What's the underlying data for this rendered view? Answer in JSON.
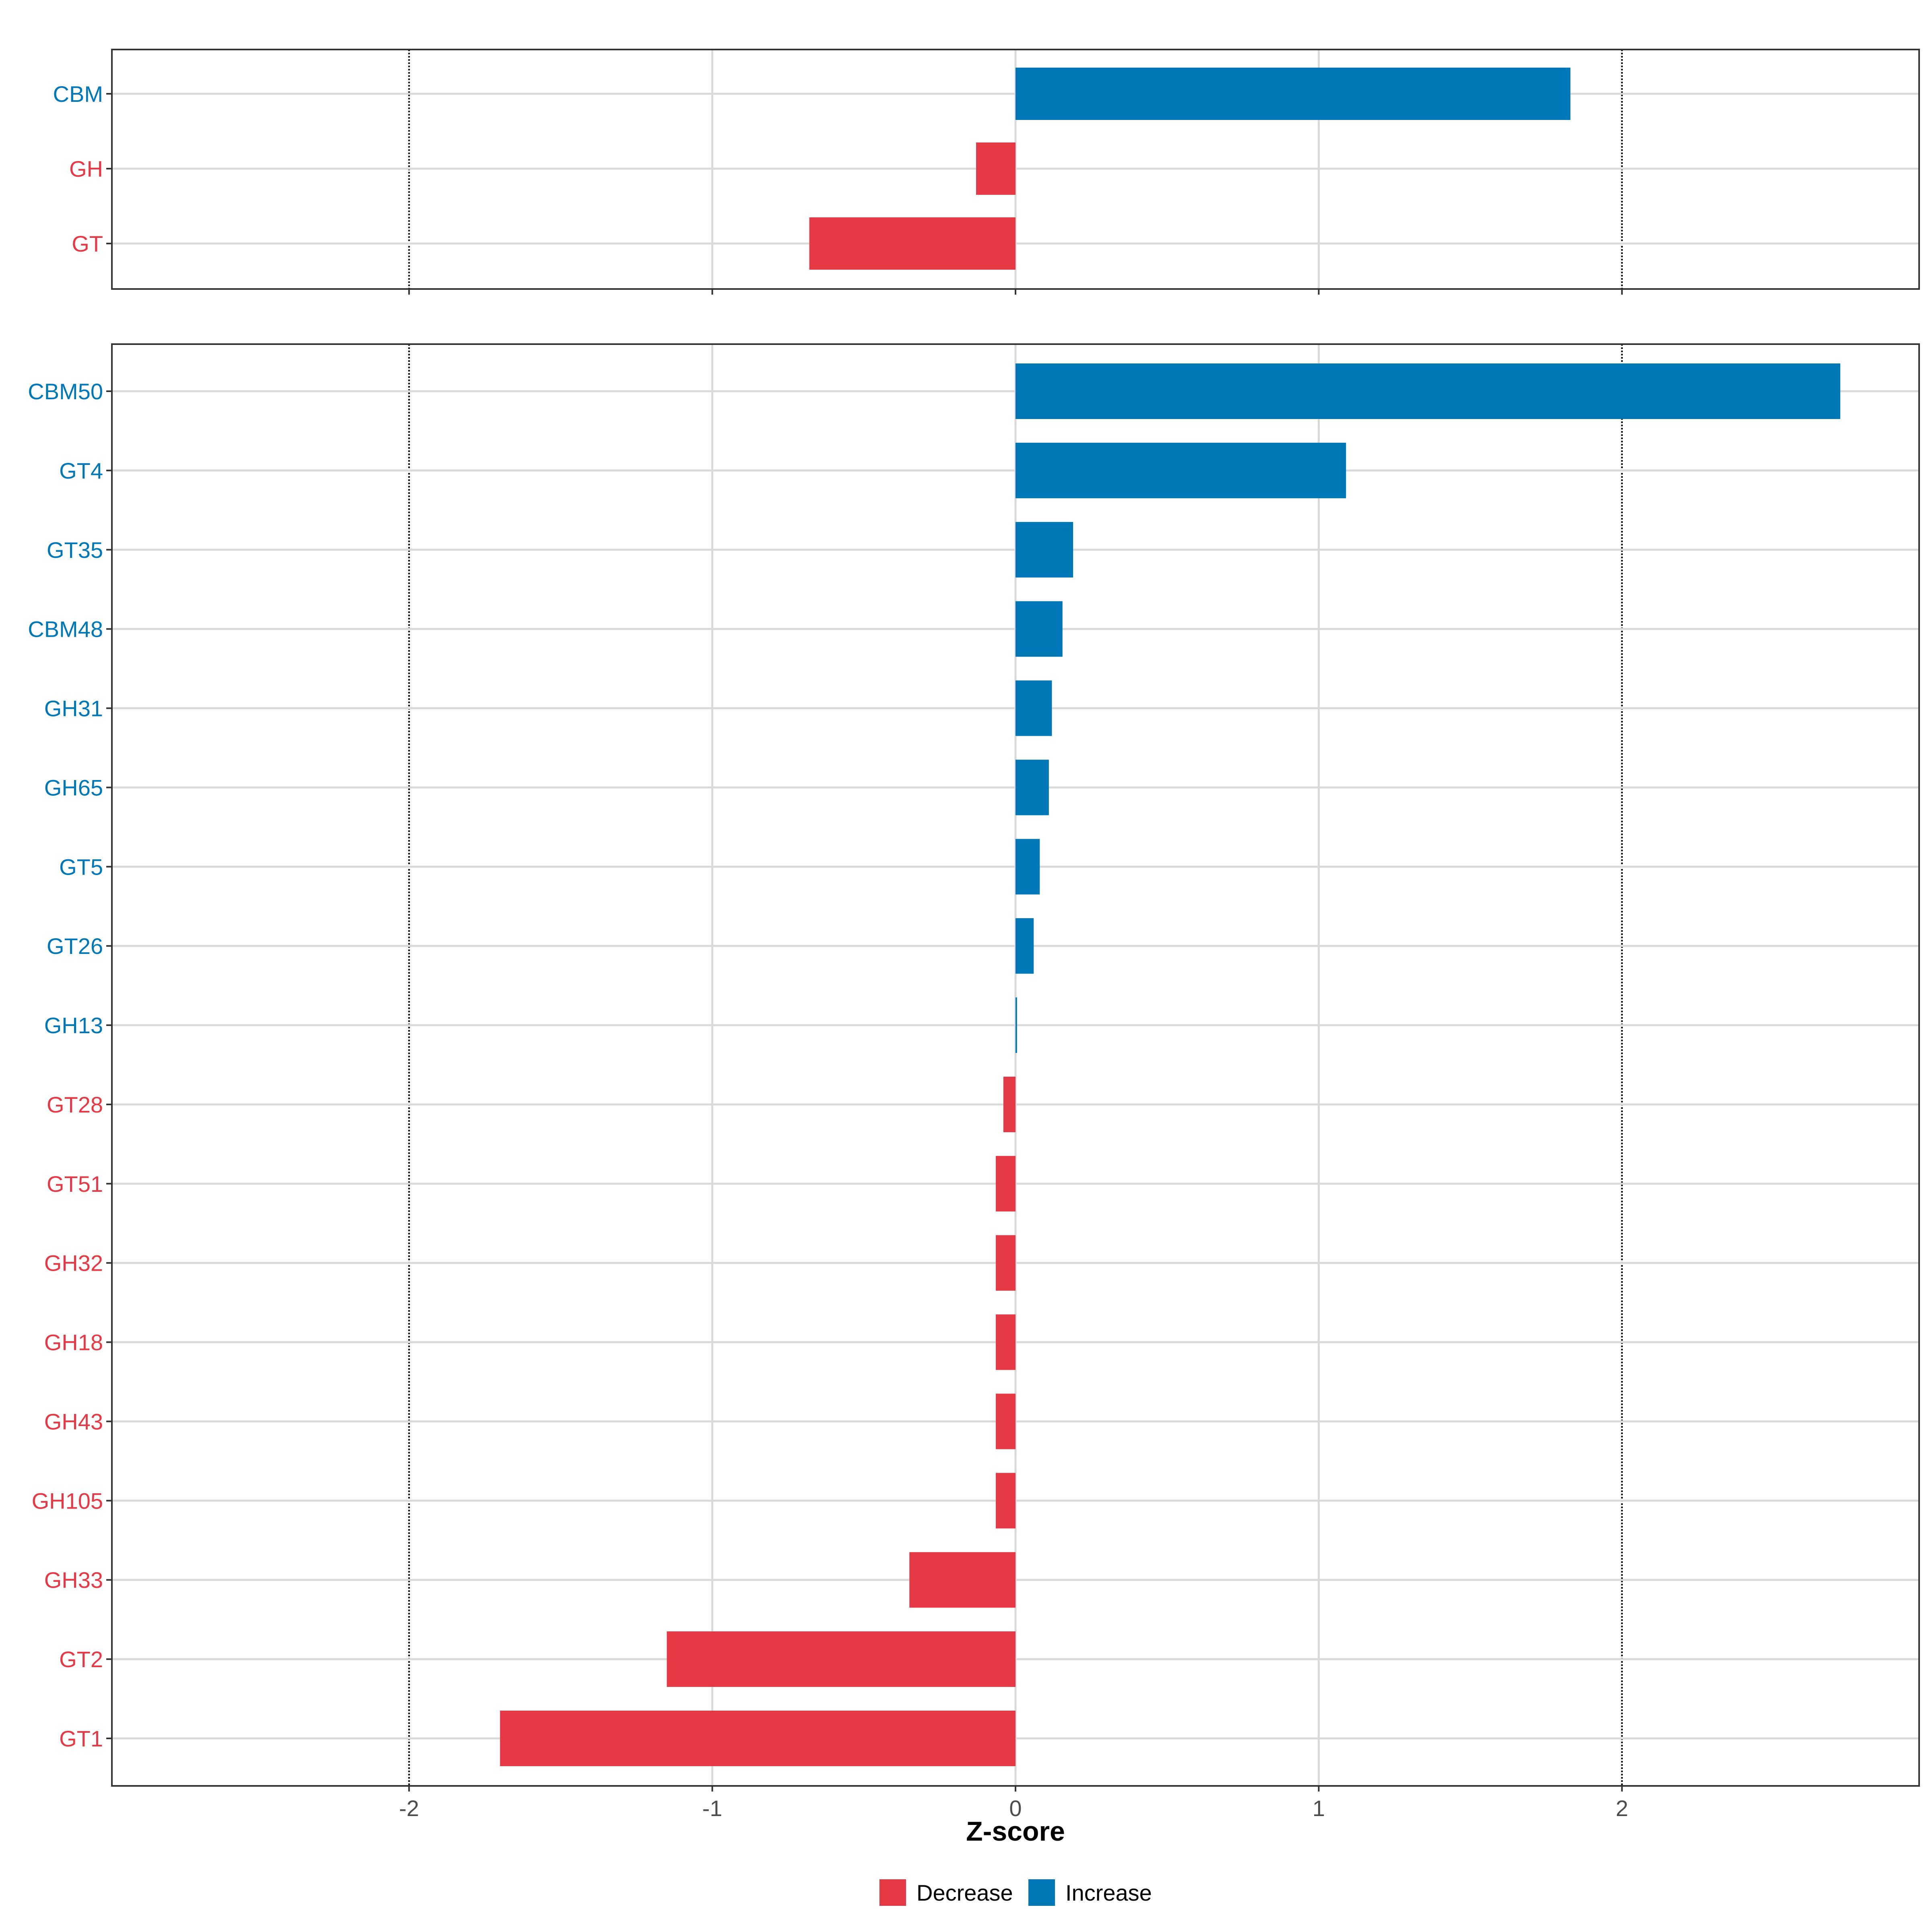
{
  "chart_data": [
    {
      "type": "bar",
      "orientation": "horizontal",
      "panel": "top",
      "categories": [
        "CBM",
        "GH",
        "GT"
      ],
      "values": [
        1.83,
        -0.13,
        -0.68
      ],
      "xlim": [
        -2.98,
        2.98
      ],
      "xticks": [
        -2,
        -1,
        0,
        1,
        2
      ],
      "reference_lines": [
        -2,
        2
      ],
      "grid": true
    },
    {
      "type": "bar",
      "orientation": "horizontal",
      "panel": "bottom",
      "categories": [
        "CBM50",
        "GT4",
        "GT35",
        "CBM48",
        "GH31",
        "GH65",
        "GT5",
        "GT26",
        "GH13",
        "GT28",
        "GT51",
        "GH32",
        "GH18",
        "GH43",
        "GH105",
        "GH33",
        "GT2",
        "GT1"
      ],
      "values": [
        2.72,
        1.09,
        0.19,
        0.155,
        0.12,
        0.11,
        0.08,
        0.06,
        0.005,
        -0.04,
        -0.065,
        -0.065,
        -0.065,
        -0.065,
        -0.065,
        -0.35,
        -1.15,
        -1.7
      ],
      "xlim": [
        -2.98,
        2.98
      ],
      "xticks": [
        -2,
        -1,
        0,
        1,
        2
      ],
      "xlabel": "Z-score",
      "reference_lines": [
        -2,
        2
      ],
      "grid": true
    }
  ],
  "tick_labels": [
    "-2",
    "-1",
    "0",
    "1",
    "2"
  ],
  "legend": {
    "position": "bottom",
    "items": [
      {
        "label": "Decrease",
        "color": "#e63946"
      },
      {
        "label": "Increase",
        "color": "#0077b6"
      }
    ]
  },
  "colors": {
    "decrease": "#e63946",
    "increase": "#0077b6",
    "grid": "#d9d9d9",
    "panel_border": "#333333",
    "reference_line": "#000000"
  }
}
